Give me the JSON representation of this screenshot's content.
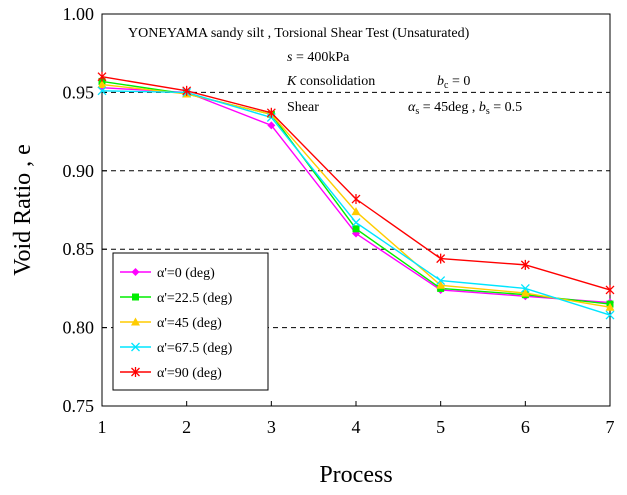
{
  "chart_data": {
    "type": "line",
    "xlabel": "Process",
    "ylabel": "Void Ratio , e",
    "x": [
      1,
      2,
      3,
      4,
      5,
      6,
      7
    ],
    "xlim": [
      1,
      7
    ],
    "ylim": [
      0.75,
      1.0
    ],
    "yticks": [
      0.75,
      0.8,
      0.85,
      0.9,
      0.95,
      1.0
    ],
    "ytick_labels": [
      "0.75",
      "0.80",
      "0.85",
      "0.90",
      "0.95",
      "1.00"
    ],
    "xticks": [
      1,
      2,
      3,
      4,
      5,
      6,
      7
    ],
    "xtick_labels": [
      "1",
      "2",
      "3",
      "4",
      "5",
      "6",
      "7"
    ],
    "grid": "horizontal dashed at 0.80, 0.85, 0.90, 0.95",
    "legend_position": "bottom-left",
    "annotations": {
      "line1": "YONEYAMA sandy silt , Torsional Shear Test (Unsaturated)",
      "line2_var": "s",
      "line2_val": " = 400kPa",
      "line3_var": "K",
      "line3_text": " consolidation",
      "line3_b": "b",
      "line3_bsub": "c",
      "line3_val": " = 0",
      "line4_text": "Shear",
      "line4_alpha": "α",
      "line4_alphasub": "s",
      "line4_alphaval": " = 45deg , ",
      "line4_b": "b",
      "line4_bsub": "s",
      "line4_bval": " = 0.5"
    },
    "series": [
      {
        "name": "α'=0 (deg)",
        "color": "#ff00ff",
        "marker": "diamond",
        "values": [
          0.953,
          0.95,
          0.929,
          0.86,
          0.824,
          0.82,
          0.816
        ]
      },
      {
        "name": "α'=22.5 (deg)",
        "color": "#00ee00",
        "marker": "square",
        "values": [
          0.957,
          0.949,
          0.936,
          0.863,
          0.825,
          0.821,
          0.815
        ]
      },
      {
        "name": "α'=45 (deg)",
        "color": "#ffcc00",
        "marker": "triangle",
        "values": [
          0.955,
          0.949,
          0.936,
          0.874,
          0.827,
          0.822,
          0.813
        ]
      },
      {
        "name": "α'=67.5 (deg)",
        "color": "#00e5ff",
        "marker": "x",
        "values": [
          0.951,
          0.95,
          0.934,
          0.867,
          0.83,
          0.825,
          0.808
        ]
      },
      {
        "name": "α'=90 (deg)",
        "color": "#ff0000",
        "marker": "star",
        "values": [
          0.96,
          0.951,
          0.937,
          0.882,
          0.844,
          0.84,
          0.824
        ]
      }
    ]
  }
}
